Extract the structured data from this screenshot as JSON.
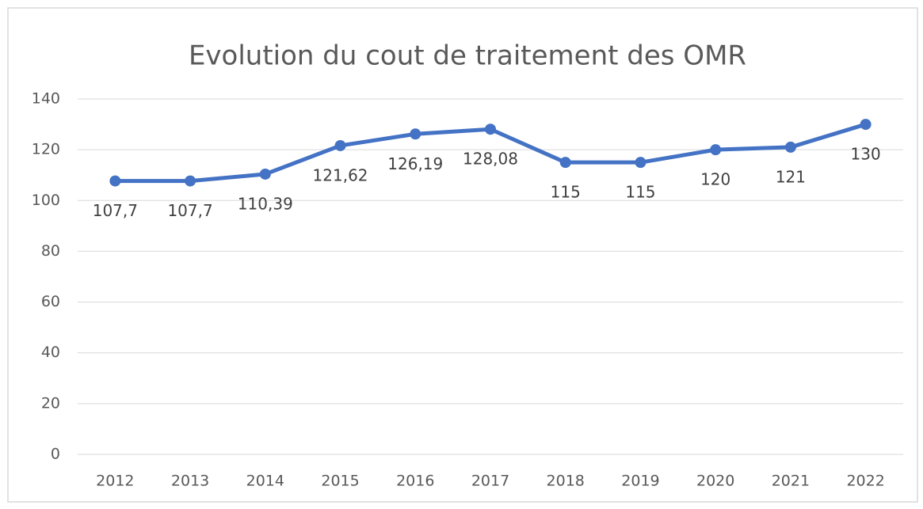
{
  "chart_data": {
    "type": "line",
    "title": "Evolution du cout de traitement des OMR",
    "categories": [
      "2012",
      "2013",
      "2014",
      "2015",
      "2016",
      "2017",
      "2018",
      "2019",
      "2020",
      "2021",
      "2022"
    ],
    "series": [
      {
        "color": "#4472c4",
        "values": [
          107.7,
          107.7,
          110.39,
          121.62,
          126.19,
          128.08,
          115,
          115,
          120,
          121,
          130
        ],
        "value_labels": [
          "107,7",
          "107,7",
          "110,39",
          "121,62",
          "126,19",
          "128,08",
          "115",
          "115",
          "120",
          "121",
          "130"
        ]
      }
    ],
    "ylim": [
      0,
      140
    ],
    "yticks": [
      0,
      20,
      40,
      60,
      80,
      100,
      120,
      140
    ],
    "grid": true
  }
}
